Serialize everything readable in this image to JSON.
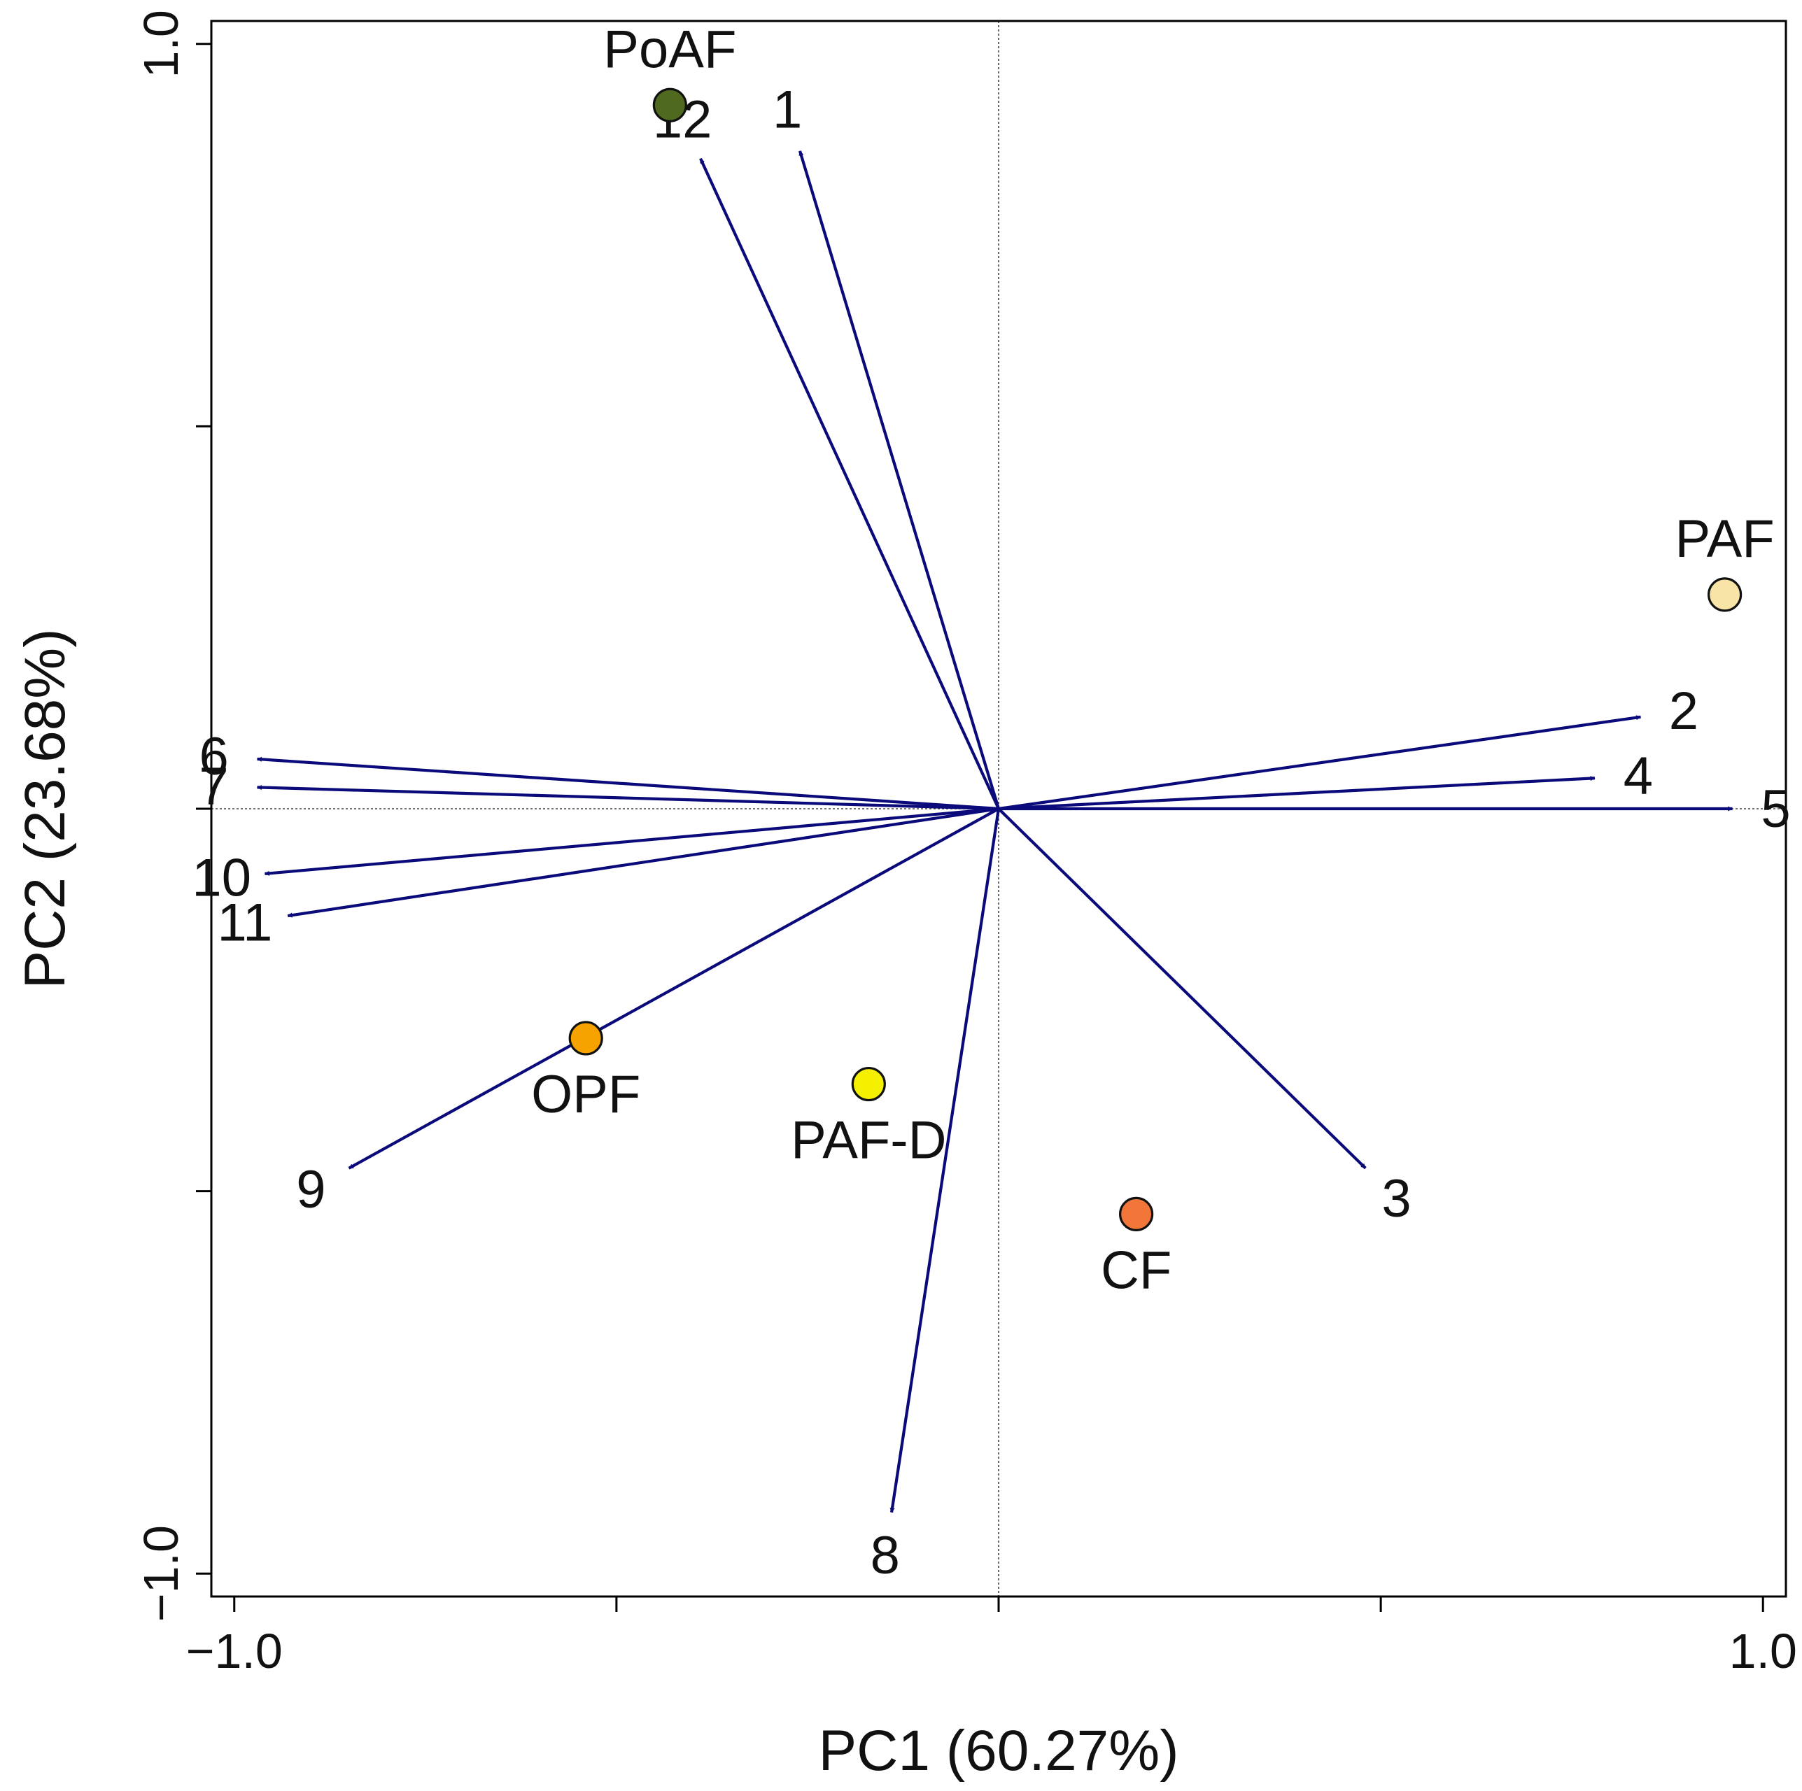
{
  "chart_data": {
    "type": "scatter",
    "subtype": "pca-biplot",
    "xlabel": "PC1 (60.27%)",
    "ylabel": "PC2 (23.68%)",
    "xlim": [
      -1.03,
      1.03
    ],
    "ylim": [
      -1.03,
      1.03
    ],
    "x_tick_values": [
      -1.0,
      -0.5,
      0.0,
      0.5,
      1.0
    ],
    "x_tick_labels": [
      "−1.0",
      "",
      "",
      "",
      "1.0"
    ],
    "y_tick_values": [
      -1.0,
      -0.5,
      0.0,
      0.5,
      1.0
    ],
    "y_tick_labels": [
      "−1.0",
      "",
      "",
      "",
      "1.0"
    ],
    "reference_lines": {
      "x": 0,
      "y": 0,
      "style": "dotted"
    },
    "grid": false,
    "vector_color": "#0a0a7a",
    "vectors": [
      {
        "label": "1",
        "x": -0.26,
        "y": 0.86
      },
      {
        "label": "2",
        "x": 0.84,
        "y": 0.12
      },
      {
        "label": "3",
        "x": 0.48,
        "y": -0.47
      },
      {
        "label": "4",
        "x": 0.78,
        "y": 0.04
      },
      {
        "label": "5",
        "x": 0.96,
        "y": 0.0
      },
      {
        "label": "6",
        "x": -0.97,
        "y": 0.065
      },
      {
        "label": "7",
        "x": -0.97,
        "y": 0.028
      },
      {
        "label": "8",
        "x": -0.14,
        "y": -0.92
      },
      {
        "label": "9",
        "x": -0.85,
        "y": -0.47
      },
      {
        "label": "10",
        "x": -0.96,
        "y": -0.085
      },
      {
        "label": "11",
        "x": -0.93,
        "y": -0.14
      },
      {
        "label": "12",
        "x": -0.39,
        "y": 0.85
      }
    ],
    "points": [
      {
        "label": "PoAF",
        "x": -0.43,
        "y": 0.92,
        "color": "#4f6a1e"
      },
      {
        "label": "PAF",
        "x": 0.95,
        "y": 0.28,
        "color": "#f7e4a6"
      },
      {
        "label": "OPF",
        "x": -0.54,
        "y": -0.3,
        "color": "#f6a300"
      },
      {
        "label": "PAF-D",
        "x": -0.17,
        "y": -0.36,
        "color": "#f5f000"
      },
      {
        "label": "CF",
        "x": 0.18,
        "y": -0.53,
        "color": "#f2753a"
      }
    ]
  }
}
